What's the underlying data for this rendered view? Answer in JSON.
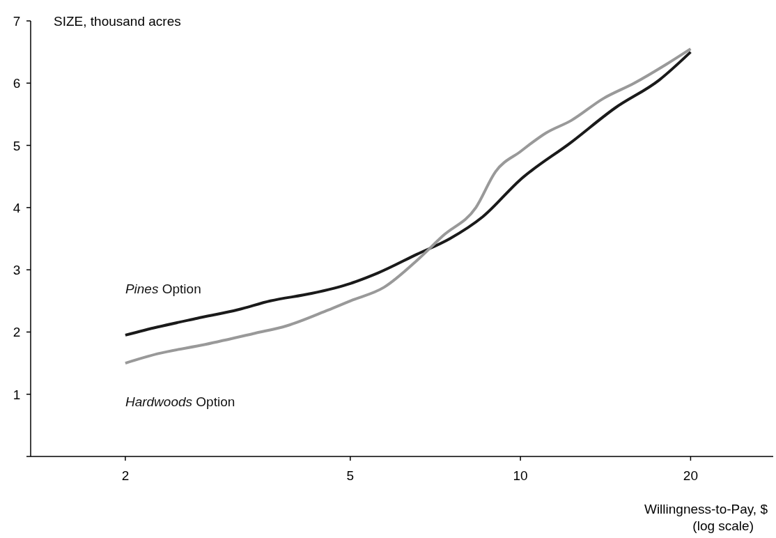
{
  "chart_data": {
    "type": "line",
    "xlabel": "Willingness-to-Pay, $\n(log scale)",
    "ylabel": "SIZE, thousand acres",
    "log": "x",
    "xlim": [
      1.36,
      28
    ],
    "xticks": [
      2,
      5,
      10,
      20
    ],
    "ylim": [
      0,
      7
    ],
    "yticks": [
      {
        "value": 0,
        "label": null
      },
      1,
      2,
      3,
      4,
      5,
      6,
      7
    ],
    "grid": false,
    "marker": "none",
    "line_style": "solid",
    "series": [
      {
        "name": "Pines Option",
        "color": "#1a1a1a",
        "x": [
          2,
          2.28,
          2.68,
          3.17,
          3.61,
          4.27,
          5,
          5.6,
          6.56,
          7.5,
          8.57,
          10,
          12.3,
          14.7,
          17.6,
          20
        ],
        "values": [
          1.95,
          2.08,
          2.22,
          2.36,
          2.5,
          2.62,
          2.78,
          2.95,
          3.25,
          3.5,
          3.85,
          4.45,
          5.05,
          5.6,
          6.05,
          6.5
        ]
      },
      {
        "name": "Hardwoods Option",
        "color": "#999999",
        "x": [
          2,
          2.28,
          2.77,
          3.39,
          3.86,
          4.56,
          5,
          5.74,
          6.56,
          7.3,
          8.34,
          9.04,
          10,
          11.1,
          12.3,
          14,
          15.9,
          18.1,
          20
        ],
        "values": [
          1.5,
          1.65,
          1.8,
          1.98,
          2.1,
          2.35,
          2.5,
          2.72,
          3.15,
          3.55,
          4.0,
          4.58,
          4.9,
          5.2,
          5.4,
          5.75,
          6.0,
          6.3,
          6.55
        ]
      }
    ]
  }
}
